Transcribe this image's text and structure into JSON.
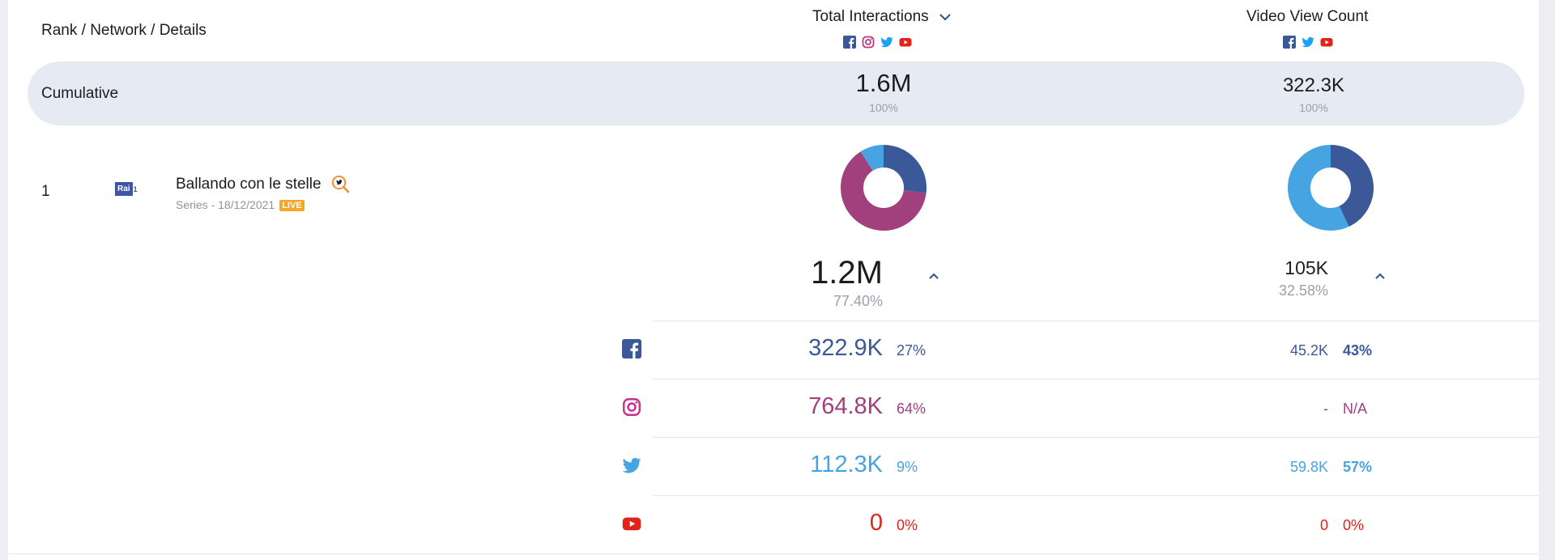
{
  "header": {
    "rank_label": "Rank / Network / Details",
    "metric1_title": "Total Interactions",
    "metric2_title": "Video View Count",
    "metric1_networks": [
      "facebook-icon",
      "instagram-icon",
      "twitter-icon",
      "youtube-icon"
    ],
    "metric2_networks": [
      "facebook-icon",
      "twitter-icon",
      "youtube-icon"
    ]
  },
  "cumulative": {
    "label": "Cumulative",
    "interactions_value": "1.6M",
    "interactions_pct": "100%",
    "views_value": "322.3K",
    "views_pct": "100%"
  },
  "row": {
    "rank": "1",
    "channel_logo_text": "Rai",
    "channel_logo_num": "1",
    "title": "Ballando con le stelle",
    "meta": "Series - 18/12/2021",
    "live_badge": "LIVE",
    "interactions_total": "1.2M",
    "interactions_total_pct": "77.40%",
    "views_total": "105K",
    "views_total_pct": "32.58%"
  },
  "breakdown": [
    {
      "network": "facebook-icon",
      "interactions": "322.9K",
      "interactions_pct": "27%",
      "views": "45.2K",
      "views_pct": "43%"
    },
    {
      "network": "instagram-icon",
      "interactions": "764.8K",
      "interactions_pct": "64%",
      "views": "-",
      "views_pct": "N/A"
    },
    {
      "network": "twitter-icon",
      "interactions": "112.3K",
      "interactions_pct": "9%",
      "views": "59.8K",
      "views_pct": "57%"
    },
    {
      "network": "youtube-icon",
      "interactions": "0",
      "interactions_pct": "0%",
      "views": "0",
      "views_pct": "0%"
    }
  ],
  "colors": {
    "facebook": "#3b5998",
    "instagram": "#a2407d",
    "twitter": "#47a4e3",
    "youtube": "#e2231a",
    "cumulative_bg": "#e6eaf2"
  },
  "chart_data": [
    {
      "type": "pie",
      "categories": [
        "Facebook",
        "Instagram",
        "Twitter",
        "YouTube"
      ],
      "values": [
        27,
        64,
        9,
        0
      ]
    },
    {
      "type": "pie",
      "categories": [
        "Facebook",
        "Twitter",
        "YouTube"
      ],
      "values": [
        43,
        57,
        0
      ]
    }
  ]
}
